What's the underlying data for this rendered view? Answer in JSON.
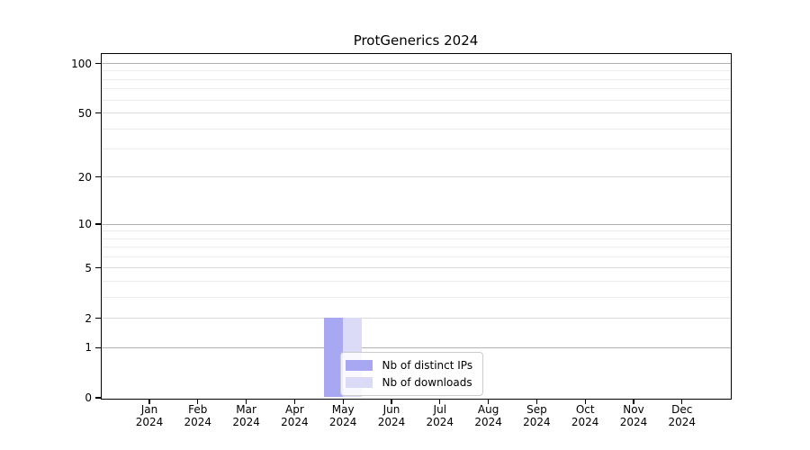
{
  "chart_data": {
    "type": "bar",
    "title": "ProtGenerics 2024",
    "categories": [
      "Jan",
      "Feb",
      "Mar",
      "Apr",
      "May",
      "Jun",
      "Jul",
      "Aug",
      "Sep",
      "Oct",
      "Nov",
      "Dec"
    ],
    "category_year": "2024",
    "series": [
      {
        "name": "Nb of distinct IPs",
        "color": "#a7a7f2",
        "values": [
          0,
          0,
          0,
          0,
          2,
          0,
          0,
          0,
          0,
          0,
          0,
          0
        ]
      },
      {
        "name": "Nb of downloads",
        "color": "#dbdbf8",
        "values": [
          0,
          0,
          0,
          0,
          2,
          0,
          0,
          0,
          0,
          0,
          0,
          0
        ]
      }
    ],
    "xlabel": "",
    "ylabel": "",
    "y_axis": {
      "scale": "log1p",
      "ticks": [
        0,
        1,
        2,
        5,
        10,
        20,
        50,
        100
      ],
      "minor_gridlines": [
        3,
        4,
        6,
        7,
        8,
        9,
        30,
        40,
        60,
        70,
        80,
        90
      ],
      "ylim": [
        0,
        115
      ]
    },
    "grid": {
      "power_of_ten_color": "#b3b3b3",
      "labeled_tick_color": "#dbdbdb",
      "minor_color": "#ececec"
    },
    "legend": {
      "position": "inside-bottom-center",
      "background": "rgba(255,255,255,0.8)",
      "border_color": "#cccccc"
    },
    "spine_color": "#000000"
  }
}
